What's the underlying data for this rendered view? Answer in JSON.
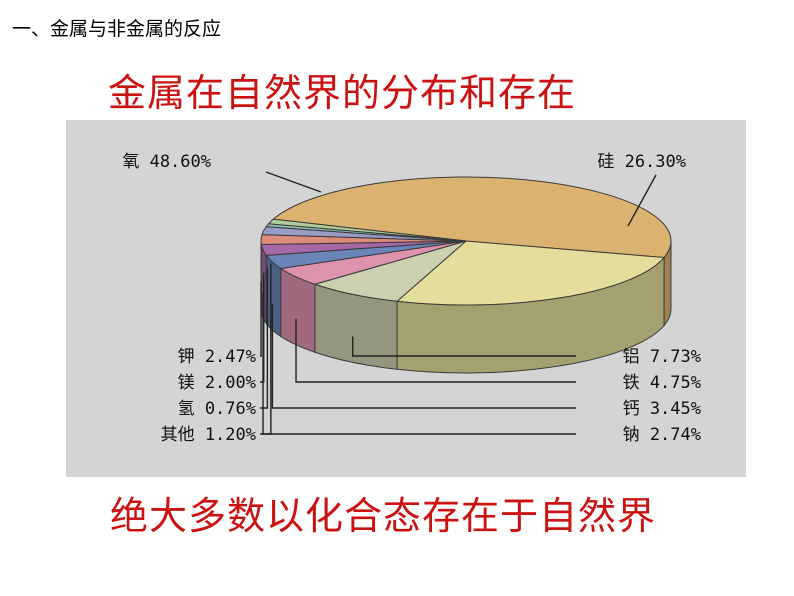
{
  "header": {
    "section_title": "一、金属与非金属的反应"
  },
  "slide": {
    "title": "金属在自然界的分布和存在",
    "conclusion": "绝大多数以化合态存在于自然界"
  },
  "chart_data": {
    "type": "pie",
    "style": "3d",
    "unit": "%",
    "slices": [
      {
        "name": "氧",
        "value": 48.6,
        "label": "氧 48.60%",
        "color": "#dcb270"
      },
      {
        "name": "硅",
        "value": 26.3,
        "label": "硅 26.30%",
        "color": "#e4de9c"
      },
      {
        "name": "铝",
        "value": 7.73,
        "label": "铝 7.73%",
        "color": "#cdd0b0"
      },
      {
        "name": "铁",
        "value": 4.75,
        "label": "铁 4.75%",
        "color": "#de92ae"
      },
      {
        "name": "钙",
        "value": 3.45,
        "label": "钙 3.45%",
        "color": "#6a86b8"
      },
      {
        "name": "钠",
        "value": 2.74,
        "label": "钠 2.74%",
        "color": "#a668a6"
      },
      {
        "name": "钾",
        "value": 2.47,
        "label": "钾 2.47%",
        "color": "#de8c7a"
      },
      {
        "name": "镁",
        "value": 2.0,
        "label": "镁 2.00%",
        "color": "#9a9cc6"
      },
      {
        "name": "氢",
        "value": 0.76,
        "label": "氢 0.76%",
        "color": "#90c0b8"
      },
      {
        "name": "其他",
        "value": 1.2,
        "label": "其他 1.20%",
        "color": "#b0cc9a"
      }
    ],
    "legend": "none",
    "background": "#d4d4d4"
  }
}
